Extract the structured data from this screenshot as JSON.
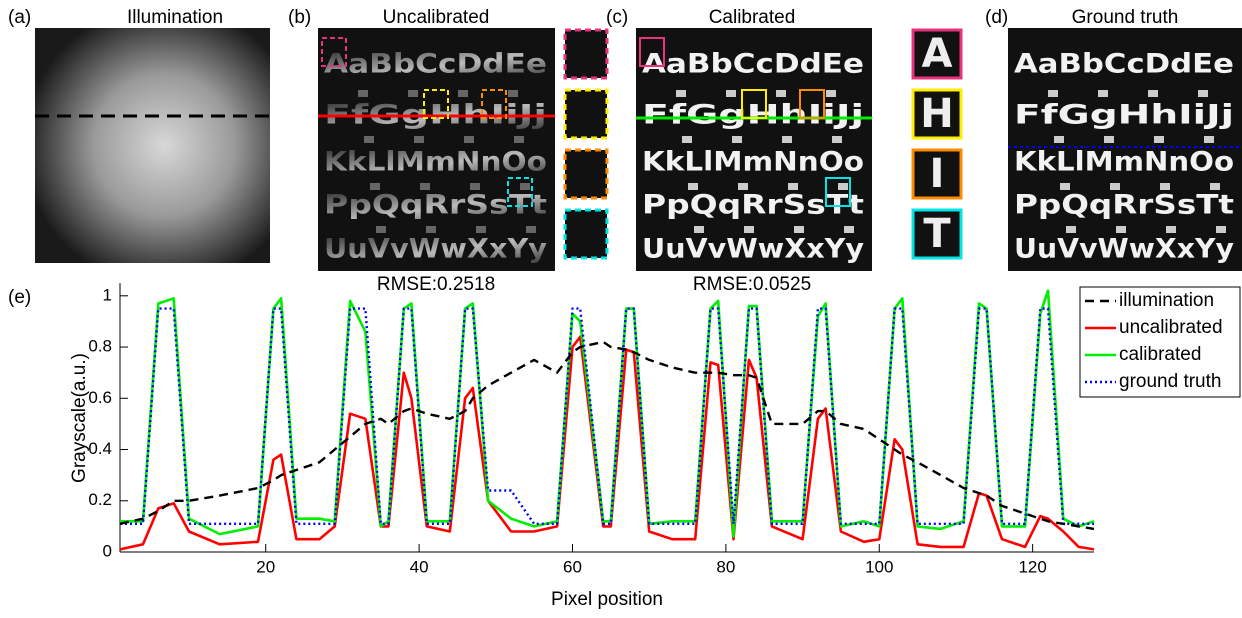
{
  "panels": [
    {
      "label": "(a)",
      "title": "Illumination"
    },
    {
      "label": "(b)",
      "title": "Uncalibrated",
      "rmse": "RMSE:0.2518",
      "letters": [
        "AaBbCcDdEe",
        "FfGgHhIiJj",
        "KkLlMmNnOo",
        "PpQqRrSsTt",
        "UuVvWwXxYy"
      ]
    },
    {
      "label": "(c)",
      "title": "Calibrated",
      "rmse": "RMSE:0.0525",
      "letters": [
        "AaBbCcDdEe",
        "FfGgHhIiJj",
        "KkLlMmNnOo",
        "PpQqRrSsTt",
        "UuVvWwXxYy"
      ],
      "insets": [
        "A",
        "H",
        "I",
        "T"
      ]
    },
    {
      "label": "(d)",
      "title": "Ground truth",
      "letters": [
        "AaBbCcDdEe",
        "FfGgHhIiJj",
        "KkLlMmNnOo",
        "PpQqRrSsTt",
        "UuVvWwXxYy"
      ]
    }
  ],
  "chart_data": {
    "type": "line",
    "label": "(e)",
    "xlabel": "Pixel position",
    "ylabel": "Grayscale(a.u.)",
    "xlim": [
      1,
      128
    ],
    "ylim": [
      0,
      1.05
    ],
    "xticks": [
      20,
      40,
      60,
      80,
      100,
      120
    ],
    "yticks": [
      0,
      0.2,
      0.4,
      0.6,
      0.8,
      1
    ],
    "grid": false,
    "legend": "upper right",
    "x": [
      1,
      4,
      6,
      8,
      10,
      14,
      19,
      21,
      22,
      24,
      27,
      29,
      31,
      33,
      35,
      36,
      38,
      39,
      41,
      44,
      46,
      47,
      49,
      52,
      55,
      58,
      60,
      61,
      64,
      65,
      67,
      68,
      70,
      73,
      76,
      78,
      79,
      81,
      83,
      84,
      86,
      90,
      92,
      93,
      95,
      98,
      100,
      102,
      103,
      105,
      108,
      111,
      113,
      114,
      116,
      119,
      121,
      122,
      124,
      126,
      128
    ],
    "series": [
      {
        "name": "illumination",
        "color": "#000000",
        "style": "dashed",
        "values": [
          0.11,
          0.13,
          0.16,
          0.2,
          0.2,
          0.22,
          0.25,
          0.28,
          0.3,
          0.32,
          0.35,
          0.4,
          0.45,
          0.5,
          0.52,
          0.5,
          0.55,
          0.56,
          0.54,
          0.52,
          0.55,
          0.6,
          0.65,
          0.7,
          0.75,
          0.7,
          0.78,
          0.8,
          0.82,
          0.8,
          0.79,
          0.78,
          0.75,
          0.72,
          0.7,
          0.7,
          0.7,
          0.69,
          0.69,
          0.68,
          0.5,
          0.5,
          0.55,
          0.55,
          0.5,
          0.48,
          0.44,
          0.4,
          0.38,
          0.35,
          0.3,
          0.25,
          0.23,
          0.22,
          0.18,
          0.15,
          0.13,
          0.12,
          0.11,
          0.1,
          0.09
        ]
      },
      {
        "name": "uncalibrated",
        "color": "#ff0000",
        "style": "solid",
        "values": [
          0.01,
          0.03,
          0.17,
          0.19,
          0.08,
          0.03,
          0.04,
          0.36,
          0.38,
          0.05,
          0.05,
          0.1,
          0.54,
          0.52,
          0.1,
          0.1,
          0.7,
          0.6,
          0.1,
          0.08,
          0.6,
          0.64,
          0.2,
          0.08,
          0.08,
          0.1,
          0.8,
          0.84,
          0.1,
          0.1,
          0.79,
          0.78,
          0.08,
          0.05,
          0.05,
          0.74,
          0.73,
          0.05,
          0.75,
          0.68,
          0.1,
          0.05,
          0.52,
          0.56,
          0.08,
          0.04,
          0.05,
          0.44,
          0.4,
          0.03,
          0.02,
          0.02,
          0.23,
          0.22,
          0.05,
          0.02,
          0.14,
          0.13,
          0.08,
          0.02,
          0.01
        ]
      },
      {
        "name": "calibrated",
        "color": "#00ee00",
        "style": "solid",
        "values": [
          0.12,
          0.12,
          0.97,
          0.99,
          0.13,
          0.07,
          0.1,
          0.95,
          0.99,
          0.13,
          0.13,
          0.12,
          0.98,
          0.86,
          0.1,
          0.12,
          0.95,
          0.97,
          0.12,
          0.12,
          0.95,
          0.97,
          0.2,
          0.13,
          0.1,
          0.12,
          0.93,
          0.9,
          0.12,
          0.12,
          0.95,
          0.95,
          0.11,
          0.12,
          0.12,
          0.95,
          0.98,
          0.06,
          0.96,
          0.96,
          0.12,
          0.12,
          0.92,
          0.97,
          0.1,
          0.12,
          0.1,
          0.95,
          0.99,
          0.1,
          0.09,
          0.12,
          0.97,
          0.95,
          0.1,
          0.1,
          0.93,
          1.02,
          0.13,
          0.1,
          0.12
        ]
      },
      {
        "name": "ground truth",
        "color": "#0000ff",
        "style": "dotted",
        "values": [
          0.11,
          0.11,
          0.95,
          0.95,
          0.11,
          0.11,
          0.11,
          0.95,
          0.95,
          0.11,
          0.11,
          0.11,
          0.95,
          0.95,
          0.11,
          0.11,
          0.95,
          0.95,
          0.11,
          0.11,
          0.95,
          0.95,
          0.24,
          0.24,
          0.11,
          0.11,
          0.95,
          0.95,
          0.11,
          0.11,
          0.95,
          0.95,
          0.11,
          0.11,
          0.11,
          0.95,
          0.95,
          0.11,
          0.95,
          0.95,
          0.11,
          0.11,
          0.95,
          0.95,
          0.11,
          0.11,
          0.11,
          0.95,
          0.95,
          0.11,
          0.11,
          0.11,
          0.95,
          0.95,
          0.11,
          0.11,
          0.95,
          0.95,
          0.11,
          0.11,
          0.11
        ]
      }
    ]
  }
}
